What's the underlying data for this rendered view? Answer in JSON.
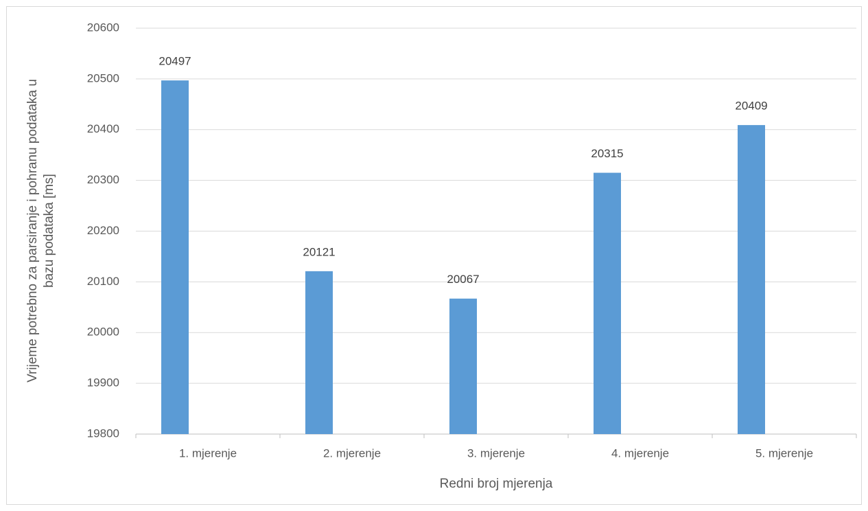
{
  "chart_data": {
    "type": "bar",
    "x_label": "Redni broj mjerenja",
    "y_label": [
      "Vrijeme potrebno za parsiranje i pohranu podataka u",
      "bazu podataka [ms]"
    ],
    "categories": [
      "1. mjerenje",
      "2. mjerenje",
      "3. mjerenje",
      "4. mjerenje",
      "5. mjerenje"
    ],
    "values": [
      20497,
      20121,
      20067,
      20315,
      20409
    ],
    "color": "#5b9bd5",
    "ylim": [
      19800,
      20600
    ],
    "yticks": [
      19800,
      19900,
      20000,
      20100,
      20200,
      20300,
      20400,
      20500,
      20600
    ],
    "grid": true
  }
}
